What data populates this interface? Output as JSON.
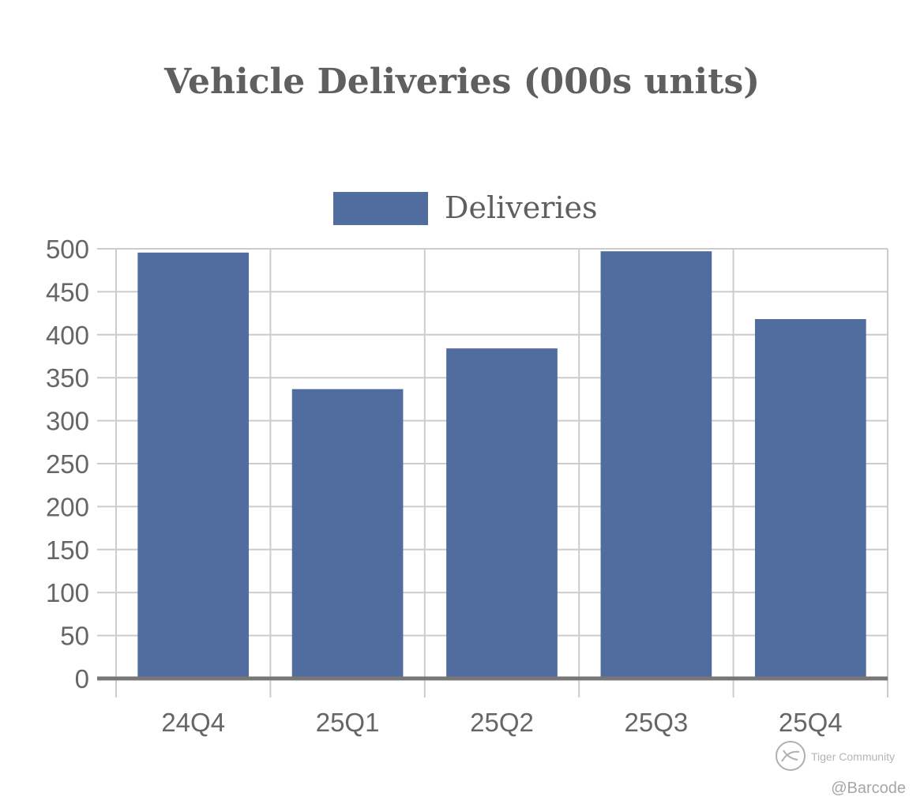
{
  "chart_data": {
    "type": "bar",
    "title": "Vehicle Deliveries (000s units)",
    "categories": [
      "24Q4",
      "25Q1",
      "25Q2",
      "25Q3",
      "25Q4"
    ],
    "series": [
      {
        "name": "Deliveries",
        "values": [
          495.6,
          336.7,
          384.1,
          497.1,
          418.2
        ]
      }
    ],
    "ylim": [
      0,
      500
    ],
    "yticks": [
      0,
      50,
      100,
      150,
      200,
      250,
      300,
      350,
      400,
      450,
      500
    ],
    "grid": true,
    "legend_position": "top-center",
    "colors": {
      "bar": "#516c9e",
      "grid": "#cccccc",
      "baseline": "#777777",
      "text": "#666666"
    }
  },
  "watermark": {
    "community": "Tiger Community",
    "handle": "@Barcode"
  }
}
